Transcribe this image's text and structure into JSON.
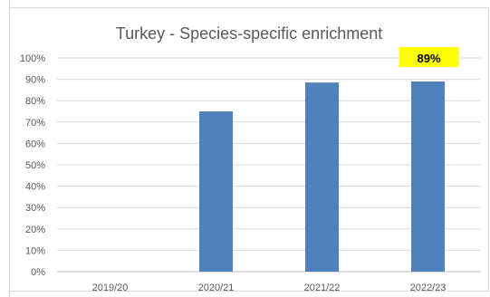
{
  "chart_data": {
    "type": "bar",
    "title": "Turkey - Species-specific enrichment",
    "categories": [
      "2019/20",
      "2020/21",
      "2021/22",
      "2022/23"
    ],
    "values": [
      null,
      0.75,
      0.885,
      0.89
    ],
    "ylim": [
      0,
      1.0
    ],
    "y_ticks": [
      "0%",
      "10%",
      "20%",
      "30%",
      "40%",
      "50%",
      "60%",
      "70%",
      "80%",
      "90%",
      "100%"
    ],
    "data_labels": [
      {
        "category": "2022/23",
        "text": "89%",
        "highlight_color": "#ffff00"
      }
    ],
    "bar_color": "#4f81bd",
    "grid": true,
    "legend": "none",
    "xlabel": "",
    "ylabel": ""
  }
}
